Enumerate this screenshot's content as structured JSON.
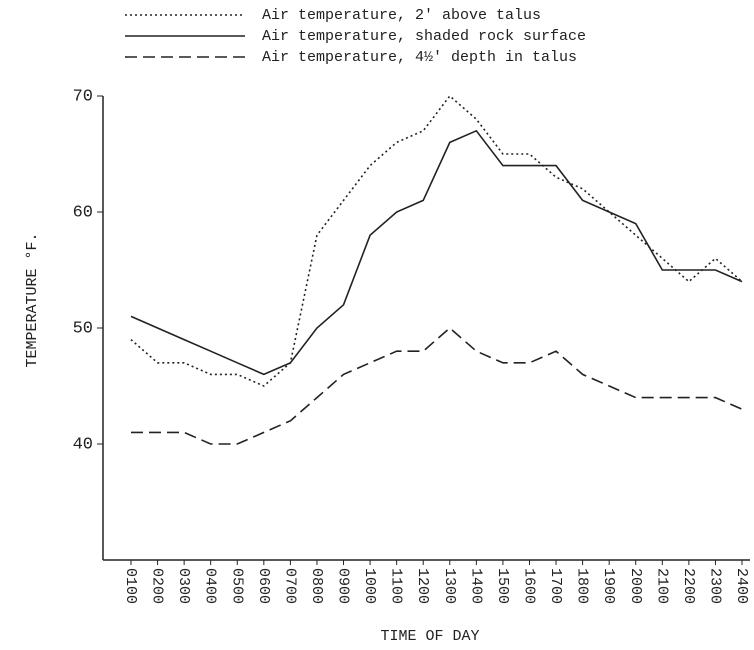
{
  "chart_data": {
    "type": "line",
    "x_label": "TIME OF DAY",
    "y_label": "TEMPERATURE °F.",
    "categories": [
      "0100",
      "0200",
      "0300",
      "0400",
      "0500",
      "0600",
      "0700",
      "0800",
      "0900",
      "1000",
      "1100",
      "1200",
      "1300",
      "1400",
      "1500",
      "1600",
      "1700",
      "1800",
      "1900",
      "2000",
      "2100",
      "2200",
      "2300",
      "2400"
    ],
    "series": [
      {
        "name": "Air temperature, 2' above talus",
        "color": "#222",
        "style": "dotted",
        "values": [
          49,
          47,
          47,
          46,
          46,
          45,
          47,
          58,
          61,
          64,
          66,
          67,
          70,
          68,
          65,
          65,
          63,
          62,
          60,
          58,
          56,
          54,
          56,
          54
        ]
      },
      {
        "name": "Air temperature, shaded rock surface",
        "color": "#222",
        "style": "solid",
        "values": [
          51,
          50,
          49,
          48,
          47,
          46,
          47,
          50,
          52,
          58,
          60,
          61,
          66,
          67,
          64,
          64,
          64,
          61,
          60,
          59,
          55,
          55,
          55,
          54
        ]
      },
      {
        "name": "Air temperature, 4½' depth in talus",
        "color": "#222",
        "style": "dashed",
        "values": [
          41,
          41,
          41,
          40,
          40,
          41,
          42,
          44,
          46,
          47,
          48,
          48,
          50,
          48,
          47,
          47,
          48,
          46,
          45,
          44,
          44,
          44,
          44,
          43
        ]
      }
    ],
    "ylim": [
      30,
      70
    ],
    "yticks": [
      40,
      50,
      60,
      70
    ],
    "legend": "top"
  }
}
